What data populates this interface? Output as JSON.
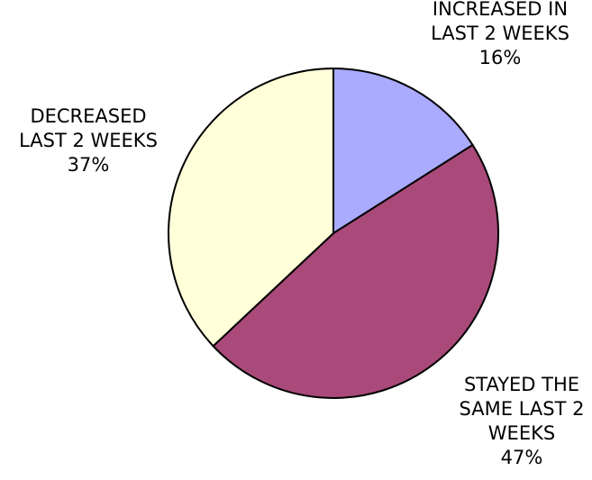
{
  "chart_data": {
    "type": "pie",
    "title": "",
    "start_angle_deg": 0,
    "direction": "clockwise",
    "slices": [
      {
        "label_lines": [
          "INCREASED IN",
          "LAST 2 WEEKS",
          "16%"
        ],
        "value": 16,
        "color": "#aaaaff"
      },
      {
        "label_lines": [
          "STAYED THE",
          "SAME LAST 2",
          "WEEKS",
          "47%"
        ],
        "value": 47,
        "color": "#a94a7a"
      },
      {
        "label_lines": [
          "DECREASED",
          "LAST 2 WEEKS",
          "37%"
        ],
        "value": 37,
        "color": "#ffffd9"
      }
    ]
  }
}
